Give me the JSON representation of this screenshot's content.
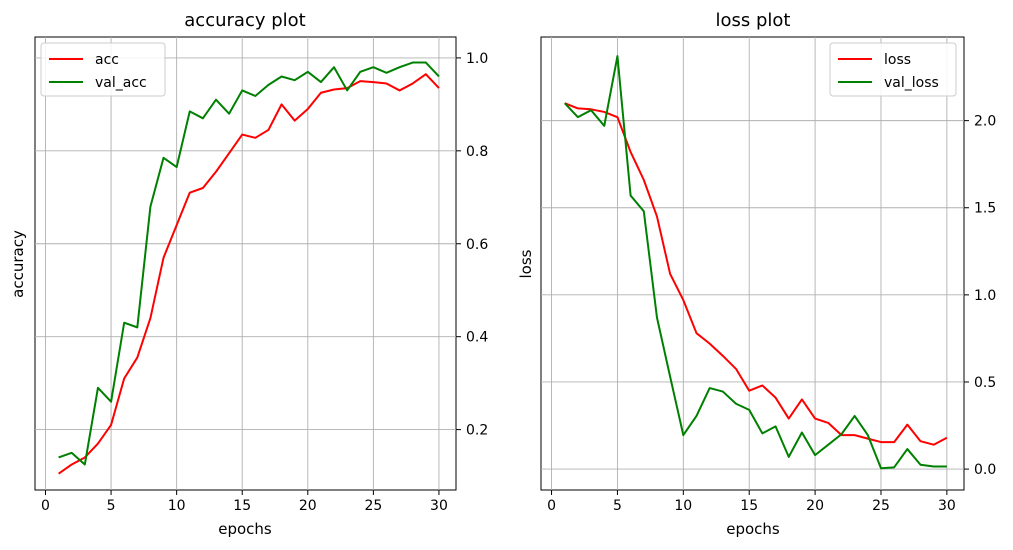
{
  "chart_data": [
    {
      "type": "line",
      "title": "accuracy plot",
      "xlabel": "epochs",
      "ylabel": "accuracy",
      "xlim": [
        -0.8,
        31.3
      ],
      "ylim": [
        0.07,
        1.045
      ],
      "xticks": [
        0,
        5,
        10,
        15,
        20,
        25,
        30
      ],
      "yticks": [
        0.2,
        0.4,
        0.6,
        0.8,
        1.0
      ],
      "ytick_labels": [
        "0.2",
        "0.4",
        "0.6",
        "0.8",
        "1.0"
      ],
      "y_axis_side": "right",
      "grid": true,
      "legend_position": "top-left",
      "x": [
        1,
        2,
        3,
        4,
        5,
        6,
        7,
        8,
        9,
        10,
        11,
        12,
        13,
        14,
        15,
        16,
        17,
        18,
        19,
        20,
        21,
        22,
        23,
        24,
        25,
        26,
        27,
        28,
        29,
        30
      ],
      "series": [
        {
          "name": "acc",
          "color": "#ff0000",
          "values": [
            0.105,
            0.125,
            0.14,
            0.17,
            0.21,
            0.31,
            0.355,
            0.44,
            0.57,
            0.64,
            0.71,
            0.72,
            0.755,
            0.795,
            0.835,
            0.828,
            0.845,
            0.9,
            0.865,
            0.89,
            0.925,
            0.932,
            0.935,
            0.95,
            0.948,
            0.945,
            0.93,
            0.945,
            0.965,
            0.935
          ]
        },
        {
          "name": "val_acc",
          "color": "#008000",
          "values": [
            0.14,
            0.15,
            0.125,
            0.29,
            0.26,
            0.43,
            0.42,
            0.68,
            0.785,
            0.765,
            0.885,
            0.87,
            0.91,
            0.88,
            0.93,
            0.918,
            0.942,
            0.96,
            0.952,
            0.97,
            0.948,
            0.98,
            0.93,
            0.97,
            0.98,
            0.968,
            0.98,
            0.99,
            0.99,
            0.96
          ]
        }
      ]
    },
    {
      "type": "line",
      "title": "loss plot",
      "xlabel": "epochs",
      "ylabel": "loss",
      "xlim": [
        -0.8,
        31.3
      ],
      "ylim": [
        -0.12,
        2.48
      ],
      "xticks": [
        0,
        5,
        10,
        15,
        20,
        25,
        30
      ],
      "yticks": [
        0.0,
        0.5,
        1.0,
        1.5,
        2.0
      ],
      "ytick_labels": [
        "0.0",
        "0.5",
        "1.0",
        "1.5",
        "2.0"
      ],
      "y_axis_side": "right",
      "grid": true,
      "legend_position": "top-right",
      "x": [
        1,
        2,
        3,
        4,
        5,
        6,
        7,
        8,
        9,
        10,
        11,
        12,
        13,
        14,
        15,
        16,
        17,
        18,
        19,
        20,
        21,
        22,
        23,
        24,
        25,
        26,
        27,
        28,
        29,
        30
      ],
      "series": [
        {
          "name": "loss",
          "color": "#ff0000",
          "values": [
            2.1,
            2.07,
            2.065,
            2.05,
            2.02,
            1.82,
            1.66,
            1.45,
            1.12,
            0.97,
            0.78,
            0.72,
            0.65,
            0.575,
            0.45,
            0.48,
            0.41,
            0.29,
            0.4,
            0.29,
            0.265,
            0.195,
            0.195,
            0.175,
            0.155,
            0.155,
            0.255,
            0.16,
            0.14,
            0.18
          ]
        },
        {
          "name": "val_loss",
          "color": "#008000",
          "values": [
            2.1,
            2.02,
            2.06,
            1.97,
            2.37,
            1.57,
            1.48,
            0.87,
            0.53,
            0.195,
            0.305,
            0.465,
            0.445,
            0.375,
            0.34,
            0.205,
            0.245,
            0.07,
            0.21,
            0.08,
            0.14,
            0.2,
            0.305,
            0.195,
            0.005,
            0.01,
            0.115,
            0.025,
            0.015,
            0.015
          ]
        }
      ]
    }
  ]
}
